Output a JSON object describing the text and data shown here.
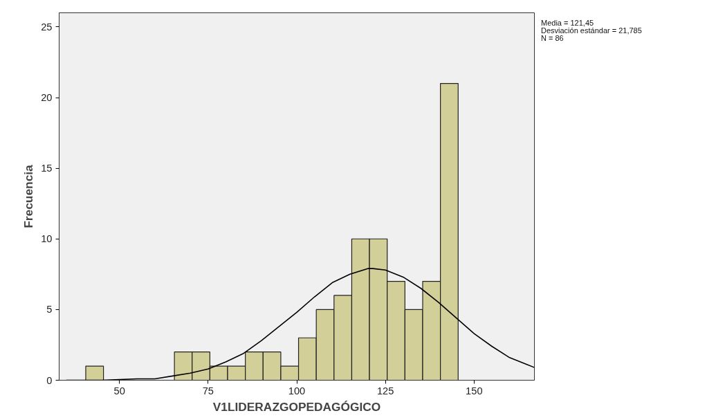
{
  "chart_data": {
    "type": "histogram",
    "xlabel": "V1LIDERAZGOPEDAGÓGICO",
    "ylabel": "Frecuencia",
    "bins": [
      40.5,
      45.5,
      50.5,
      55.5,
      60.5,
      65.5,
      70.5,
      75.5,
      80.5,
      85.5,
      90.5,
      95.5,
      100.5,
      105.5,
      110.5,
      115.5,
      120.5,
      125.5,
      130.5,
      135.5,
      140.5,
      145.5
    ],
    "values": [
      1,
      0,
      0,
      0,
      0,
      2,
      2,
      1,
      1,
      2,
      2,
      1,
      3,
      5,
      6,
      10,
      10,
      7,
      5,
      7,
      21
    ],
    "color": "#d3cf98",
    "series": [
      {
        "type": "line",
        "color": "#000000",
        "x": [
          35,
          45,
          55,
          60,
          65,
          70,
          75,
          80,
          85,
          90,
          95,
          100,
          105,
          110,
          115,
          120,
          121.45,
          125,
          130,
          135,
          140,
          145,
          150,
          155,
          160,
          165,
          167
        ],
        "values": [
          0,
          0,
          0.1,
          0.1,
          0.3,
          0.5,
          0.8,
          1.3,
          1.9,
          2.8,
          3.8,
          4.8,
          5.9,
          6.9,
          7.5,
          7.9,
          7.9,
          7.8,
          7.3,
          6.5,
          5.5,
          4.4,
          3.3,
          2.4,
          1.6,
          1.1,
          0.9
        ]
      }
    ],
    "xlim": [
      33,
      167
    ],
    "ylim": [
      0,
      26
    ],
    "xticks": [
      50,
      75,
      100,
      125,
      150
    ],
    "yticks": [
      0,
      5,
      10,
      15,
      20,
      25
    ],
    "grid": false,
    "legend": false,
    "annotations": [
      "Media = 121,45",
      "Desviación estándar = 21,785",
      "N = 86"
    ]
  }
}
